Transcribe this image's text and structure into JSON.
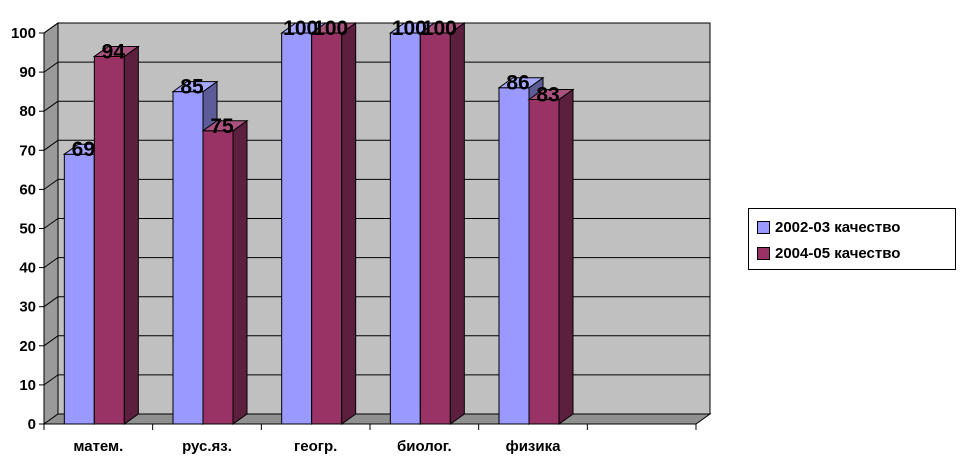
{
  "chart_data": {
    "type": "bar",
    "categories": [
      "матем.",
      "рус.яз.",
      "геогр.",
      "биолог.",
      "физика",
      ""
    ],
    "series": [
      {
        "name": "2002-03 качество",
        "values": [
          69,
          85,
          100,
          100,
          86,
          null
        ],
        "color": "#9999ff"
      },
      {
        "name": "2004-05 качество",
        "values": [
          94,
          75,
          100,
          100,
          83,
          null
        ],
        "color": "#993366"
      }
    ],
    "y_ticks": [
      "0",
      "10",
      "20",
      "30",
      "40",
      "50",
      "60",
      "70",
      "80",
      "90",
      "100"
    ],
    "ylim": [
      0,
      100
    ],
    "grid": true,
    "legend": "right",
    "plot_background": "#c0c0c0",
    "title": "",
    "xlabel": "",
    "ylabel": ""
  }
}
